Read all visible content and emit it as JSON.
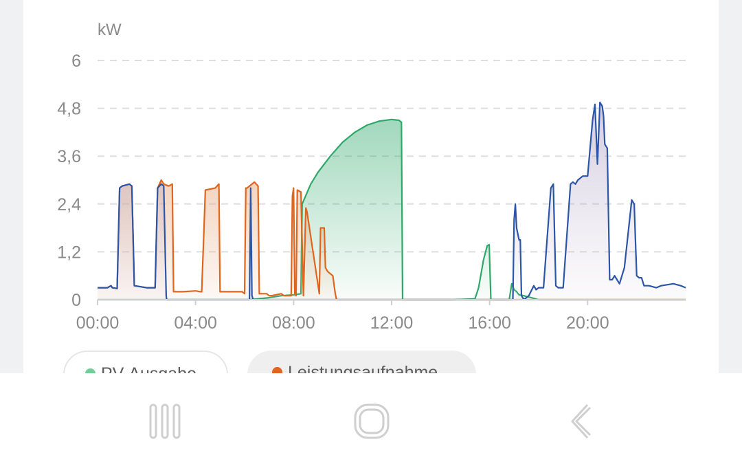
{
  "chart_data": {
    "type": "line",
    "title": "",
    "unit_label": "kW",
    "xlabel": "",
    "ylabel": "kW",
    "ylim": [
      0,
      6
    ],
    "xlim_hours": [
      0,
      24
    ],
    "y_ticks": [
      "0",
      "1,2",
      "2,4",
      "3,6",
      "4,8",
      "6"
    ],
    "y_tick_values": [
      0,
      1.2,
      2.4,
      3.6,
      4.8,
      6
    ],
    "x_ticks": [
      "00:00",
      "04:00",
      "08:00",
      "12:00",
      "16:00",
      "20:00"
    ],
    "x_tick_hours": [
      0,
      4,
      8,
      12,
      16,
      20
    ],
    "grid": true,
    "legend_position": "bottom",
    "series": [
      {
        "name": "PV-Ausgabe",
        "color": "#2ea86a",
        "fill": "#2ea86a",
        "x": [
          0,
          6.2,
          7,
          7.5,
          8,
          8.3,
          8.35,
          8.7,
          9,
          9.5,
          10,
          10.5,
          11,
          11.5,
          12,
          12.3,
          12.4,
          12.45,
          12.5,
          14.5,
          15.4,
          15.55,
          15.75,
          15.9,
          15.98,
          16.05,
          16.8,
          16.9,
          17,
          17.1,
          17.2,
          17.4,
          17.5,
          17.7,
          18,
          24
        ],
        "values": [
          0,
          0,
          0.05,
          0.1,
          0.12,
          0.15,
          2.4,
          2.9,
          3.2,
          3.6,
          3.95,
          4.2,
          4.38,
          4.48,
          4.52,
          4.5,
          4.45,
          0,
          0,
          0,
          0.02,
          0.3,
          1.0,
          1.35,
          1.38,
          0,
          0,
          0.4,
          0.25,
          0.2,
          0.12,
          0.1,
          0.08,
          0.05,
          0,
          0
        ]
      },
      {
        "name": "Leistungsaufnahme",
        "color": "#e0651d",
        "fill": "#e8b08a",
        "x": [
          0,
          0.4,
          0.55,
          0.6,
          0.8,
          0.9,
          1,
          1.3,
          1.4,
          1.5,
          2,
          2.35,
          2.45,
          2.6,
          2.7,
          2.9,
          3.05,
          3.1,
          3.15,
          3.5,
          4,
          4.2,
          4.25,
          4.4,
          4.8,
          4.95,
          5,
          5.9,
          6,
          6.05,
          6.1,
          6.4,
          6.55,
          6.6,
          6.9,
          7,
          7.1,
          7.5,
          7.6,
          7.8,
          7.9,
          7.95,
          8,
          8.05,
          8.1,
          8.15,
          8.3,
          8.4,
          8.5,
          8.55,
          9.05,
          9.1,
          9.25,
          9.3,
          9.4,
          9.6,
          9.7,
          9.75,
          24
        ],
        "values": [
          0.3,
          0.3,
          0.35,
          0.3,
          0.28,
          2.8,
          2.85,
          2.9,
          2.85,
          0.35,
          0.3,
          0.3,
          2.8,
          3.0,
          2.9,
          2.85,
          2.9,
          0.2,
          0.2,
          0.2,
          0.22,
          0.2,
          0.2,
          2.75,
          2.8,
          2.9,
          0.2,
          0.2,
          0.15,
          2.8,
          2.8,
          2.95,
          2.85,
          0.15,
          0.15,
          0.1,
          0.1,
          0.15,
          0.1,
          0.1,
          0.1,
          2.6,
          2.8,
          0.15,
          0.1,
          2.75,
          2.7,
          0.1,
          2.3,
          2.2,
          0.15,
          1.8,
          1.8,
          0.8,
          0.7,
          0.6,
          0.15,
          0,
          0
        ]
      },
      {
        "name": "",
        "color": "#2b55a6",
        "fill": "#b9aac9",
        "x": [
          0,
          0.4,
          0.55,
          0.6,
          0.8,
          0.9,
          1,
          1.3,
          1.4,
          1.5,
          2,
          2.35,
          2.45,
          2.6,
          2.7,
          2.8,
          2.82,
          6.2,
          6.25,
          6.3,
          6.35,
          16.95,
          17,
          17.05,
          17.1,
          17.2,
          17.25,
          17.3,
          17.4,
          17.5,
          17.6,
          17.8,
          17.9,
          18,
          18.2,
          18.5,
          18.6,
          18.7,
          18.8,
          18.9,
          19,
          19.3,
          19.4,
          19.5,
          19.6,
          19.8,
          20,
          20.2,
          20.3,
          20.4,
          20.5,
          20.6,
          20.65,
          20.7,
          20.8,
          20.9,
          21,
          21.1,
          21.2,
          21.3,
          21.5,
          21.8,
          21.9,
          22,
          22.1,
          22.2,
          22.3,
          22.5,
          22.8,
          23,
          23.5,
          23.8,
          24
        ],
        "values": [
          0.3,
          0.3,
          0.35,
          0.3,
          0.28,
          2.8,
          2.85,
          2.9,
          2.85,
          0.35,
          0.3,
          0.3,
          2.8,
          2.9,
          2.85,
          0.1,
          0,
          0,
          2.8,
          0.1,
          0,
          0,
          2.0,
          2.4,
          1.8,
          1.5,
          1.5,
          0.1,
          0,
          0.05,
          0.1,
          0.35,
          0.25,
          0.3,
          0.3,
          2.8,
          2.9,
          0.35,
          0.3,
          0.3,
          0.3,
          2.9,
          2.95,
          2.9,
          3.0,
          3.1,
          3.1,
          4.5,
          4.9,
          3.4,
          4.95,
          4.85,
          4.6,
          3.9,
          3.8,
          0.5,
          0.5,
          0.6,
          0.5,
          0.4,
          0.8,
          2.5,
          2.4,
          0.6,
          0.55,
          0.55,
          0.35,
          0.35,
          0.3,
          0.35,
          0.4,
          0.35,
          0.3
        ]
      }
    ]
  },
  "legend": [
    {
      "label": "PV-Ausgabe",
      "color": "#6fcf97"
    },
    {
      "label": "Leistungsaufnahme",
      "color": "#e0651d"
    }
  ],
  "navbar": {
    "recents_icon": "recents-icon",
    "home_icon": "home-icon",
    "back_icon": "back-icon"
  }
}
